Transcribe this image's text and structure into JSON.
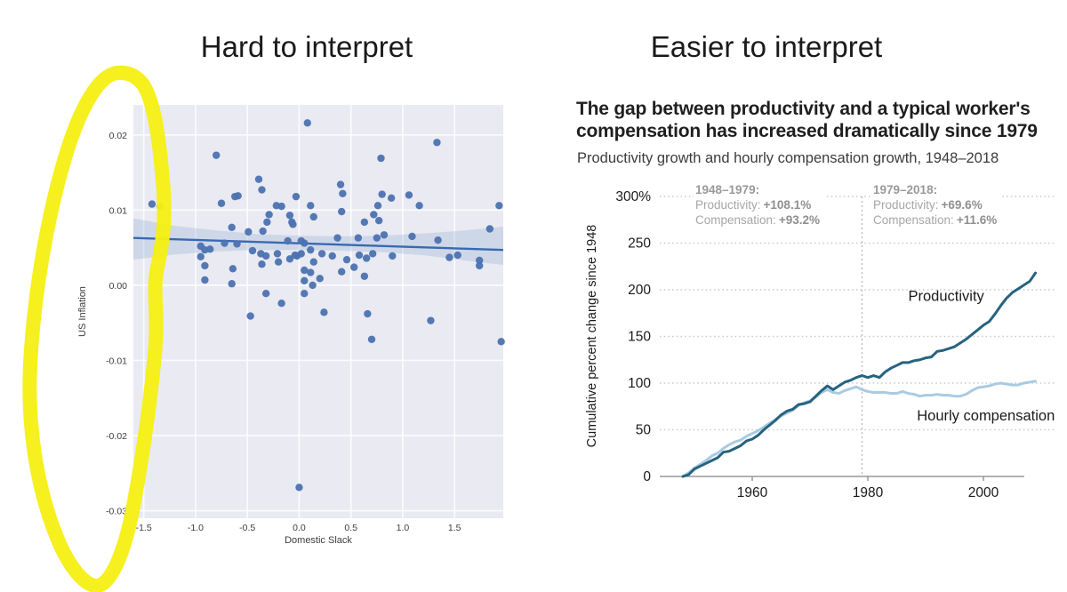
{
  "slide": {
    "left_title": "Hard to interpret",
    "right_title": "Easier to interpret"
  },
  "annotation": {
    "name": "hand-drawn yellow highlighter circle over left chart y-axis region",
    "color": "#f5ef15"
  },
  "chart_data": [
    {
      "type": "scatter",
      "xlabel": "Domestic Slack",
      "ylabel": "US Inflation",
      "xlim": [
        -1.6,
        1.97
      ],
      "ylim": [
        -0.031,
        0.024
      ],
      "grid": true,
      "xticks": [
        {
          "v": -1.5,
          "label": "-1.5"
        },
        {
          "v": -1.0,
          "label": "-1.0"
        },
        {
          "v": -0.5,
          "label": "-0.5"
        },
        {
          "v": 0.0,
          "label": "0.0"
        },
        {
          "v": 0.5,
          "label": "0.5"
        },
        {
          "v": 1.0,
          "label": "1.0"
        },
        {
          "v": 1.5,
          "label": "1.5"
        }
      ],
      "yticks": [
        {
          "v": 0.02,
          "label": "0.02"
        },
        {
          "v": 0.01,
          "label": "0.01"
        },
        {
          "v": 0.0,
          "label": "0.00"
        },
        {
          "v": -0.01,
          "label": "-0.01"
        },
        {
          "v": -0.02,
          "label": "-0.02"
        },
        {
          "v": -0.03,
          "label": "-0.03"
        }
      ],
      "points": [
        [
          0.08,
          0.0216
        ],
        [
          1.33,
          0.019
        ],
        [
          -0.8,
          0.0173
        ],
        [
          0.79,
          0.0169
        ],
        [
          -0.39,
          0.0141
        ],
        [
          0.4,
          0.0134
        ],
        [
          0.42,
          0.0122
        ],
        [
          -0.36,
          0.0127
        ],
        [
          -0.62,
          0.0118
        ],
        [
          -0.59,
          0.0119
        ],
        [
          -0.03,
          0.0118
        ],
        [
          0.8,
          0.0121
        ],
        [
          0.89,
          0.0116
        ],
        [
          1.06,
          0.012
        ],
        [
          -1.42,
          0.0108
        ],
        [
          -1.34,
          0.0105
        ],
        [
          -0.75,
          0.0109
        ],
        [
          -0.22,
          0.0106
        ],
        [
          -0.17,
          0.0105
        ],
        [
          0.11,
          0.0106
        ],
        [
          0.76,
          0.0106
        ],
        [
          1.16,
          0.0106
        ],
        [
          1.93,
          0.0106
        ],
        [
          -0.29,
          0.0094
        ],
        [
          -0.09,
          0.0093
        ],
        [
          0.14,
          0.0091
        ],
        [
          0.41,
          0.0098
        ],
        [
          0.72,
          0.0094
        ],
        [
          0.77,
          0.0086
        ],
        [
          0.63,
          0.0084
        ],
        [
          -0.31,
          0.0084
        ],
        [
          -0.07,
          0.0084
        ],
        [
          -0.06,
          0.0081
        ],
        [
          -0.65,
          0.0077
        ],
        [
          -0.35,
          0.0072
        ],
        [
          1.84,
          0.0075
        ],
        [
          -0.49,
          0.0071
        ],
        [
          0.75,
          0.0063
        ],
        [
          0.82,
          0.0067
        ],
        [
          1.09,
          0.0065
        ],
        [
          -0.11,
          0.0059
        ],
        [
          0.02,
          0.0059
        ],
        [
          0.05,
          0.0056
        ],
        [
          0.37,
          0.0063
        ],
        [
          0.57,
          0.0063
        ],
        [
          1.34,
          0.006
        ],
        [
          -0.72,
          0.0056
        ],
        [
          -0.6,
          0.0055
        ],
        [
          -0.95,
          0.0052
        ],
        [
          -0.91,
          0.0047
        ],
        [
          -0.86,
          0.0048
        ],
        [
          -0.45,
          0.0046
        ],
        [
          -0.37,
          0.0042
        ],
        [
          -0.32,
          0.0039
        ],
        [
          -0.21,
          0.0042
        ],
        [
          -0.04,
          0.004
        ],
        [
          -0.02,
          0.0039
        ],
        [
          0.02,
          0.0042
        ],
        [
          0.11,
          0.0047
        ],
        [
          0.22,
          0.0042
        ],
        [
          0.32,
          0.0039
        ],
        [
          0.58,
          0.004
        ],
        [
          0.65,
          0.0036
        ],
        [
          0.71,
          0.0042
        ],
        [
          0.9,
          0.0039
        ],
        [
          1.45,
          0.0037
        ],
        [
          1.53,
          0.004
        ],
        [
          1.74,
          0.0033
        ],
        [
          1.74,
          0.0026
        ],
        [
          -0.95,
          0.0038
        ],
        [
          -0.91,
          0.0026
        ],
        [
          -0.64,
          0.0022
        ],
        [
          -0.36,
          0.0028
        ],
        [
          -0.2,
          0.0031
        ],
        [
          -0.09,
          0.0035
        ],
        [
          0.14,
          0.0031
        ],
        [
          0.46,
          0.0034
        ],
        [
          0.53,
          0.0024
        ],
        [
          0.05,
          0.002
        ],
        [
          0.11,
          0.0017
        ],
        [
          0.41,
          0.0018
        ],
        [
          0.63,
          0.0012
        ],
        [
          -0.91,
          0.0007
        ],
        [
          -0.65,
          0.0002
        ],
        [
          0.05,
          0.0006
        ],
        [
          0.13,
          0.0
        ],
        [
          0.2,
          0.0009
        ],
        [
          0.05,
          -0.0011
        ],
        [
          -0.32,
          -0.0011
        ],
        [
          -0.17,
          -0.0024
        ],
        [
          0.24,
          -0.0036
        ],
        [
          -0.47,
          -0.0041
        ],
        [
          0.66,
          -0.0038
        ],
        [
          1.27,
          -0.0047
        ],
        [
          0.7,
          -0.0072
        ],
        [
          1.95,
          -0.0075
        ],
        [
          0.0,
          -0.0269
        ]
      ],
      "regression": [
        [
          -1.6,
          0.0063
        ],
        [
          1.97,
          0.0047
        ]
      ],
      "ci_band": {
        "upper": [
          [
            -1.6,
            0.0089
          ],
          [
            -1.2,
            0.0079
          ],
          [
            -0.8,
            0.0073
          ],
          [
            -0.4,
            0.0068
          ],
          [
            0.0,
            0.0066
          ],
          [
            0.4,
            0.0065
          ],
          [
            0.8,
            0.0066
          ],
          [
            1.2,
            0.0069
          ],
          [
            1.6,
            0.0073
          ],
          [
            1.97,
            0.0078
          ]
        ],
        "lower": [
          [
            -1.6,
            0.0034
          ],
          [
            -1.2,
            0.0041
          ],
          [
            -0.8,
            0.0045
          ],
          [
            -0.4,
            0.0047
          ],
          [
            0.0,
            0.0047
          ],
          [
            0.4,
            0.0046
          ],
          [
            0.8,
            0.0044
          ],
          [
            1.2,
            0.004
          ],
          [
            1.6,
            0.0033
          ],
          [
            1.97,
            0.0027
          ]
        ]
      },
      "colors": {
        "plot_bg": "#e9eaf2",
        "grid": "#ffffff",
        "point": "#4c72b0",
        "line": "#3a68b2",
        "band": "#9fb4d8"
      }
    },
    {
      "type": "line",
      "headline": {
        "line1": "The gap between productivity and a typical worker's",
        "line2": "compensation has increased dramatically since 1979"
      },
      "subtitle": "Productivity growth and hourly compensation growth, 1948–2018",
      "ylabel": "Cumulative percent change since 1948",
      "xlim": [
        1944,
        2009
      ],
      "ylim": [
        0,
        300
      ],
      "grid": "dotted horizontal",
      "xticks": [
        {
          "v": 1960,
          "label": "1960"
        },
        {
          "v": 1980,
          "label": "1980"
        },
        {
          "v": 2000,
          "label": "2000"
        }
      ],
      "yticks": [
        {
          "v": 0,
          "label": "0"
        },
        {
          "v": 50,
          "label": "50"
        },
        {
          "v": 100,
          "label": "100"
        },
        {
          "v": 150,
          "label": "150"
        },
        {
          "v": 200,
          "label": "200"
        },
        {
          "v": 250,
          "label": "250"
        },
        {
          "v": 300,
          "label": "300%"
        }
      ],
      "vline_year": 1979,
      "periods": [
        {
          "range": "1948–1979:",
          "productivity_label": "Productivity:",
          "productivity_value": "+108.1%",
          "compensation_label": "Compensation:",
          "compensation_value": "+93.2%"
        },
        {
          "range": "1979–2018:",
          "productivity_label": "Productivity:",
          "productivity_value": "+69.6%",
          "compensation_label": "Compensation:",
          "compensation_value": "+11.6%"
        }
      ],
      "series": [
        {
          "name": "Hourly compensation",
          "color": "#a9cbe2",
          "label_anchor": {
            "year": 1988.5,
            "value": 60
          },
          "year_start": 1948,
          "values": [
            0,
            4,
            9,
            13,
            17,
            22,
            25,
            30,
            34,
            37,
            39,
            43,
            46,
            49,
            53,
            57,
            61,
            65,
            68,
            71,
            76,
            79,
            81,
            85,
            90,
            93,
            90,
            89,
            92,
            94,
            96,
            93,
            91,
            90,
            90,
            90,
            89,
            89,
            91,
            89,
            88,
            86,
            87,
            87,
            88,
            87,
            87,
            86,
            86,
            88,
            92,
            95,
            96,
            97,
            99,
            100,
            99,
            98,
            98,
            100,
            101,
            102
          ]
        },
        {
          "name": "Productivity",
          "color": "#26637f",
          "label_anchor": {
            "year": 1987,
            "value": 188
          },
          "year_start": 1948,
          "values": [
            0,
            2,
            8,
            11,
            14,
            17,
            20,
            26,
            27,
            30,
            33,
            38,
            40,
            44,
            50,
            55,
            60,
            66,
            70,
            72,
            77,
            78,
            80,
            86,
            92,
            97,
            93,
            97,
            101,
            103,
            106,
            108,
            106,
            108,
            106,
            112,
            116,
            119,
            122,
            122,
            124,
            125,
            127,
            128,
            134,
            135,
            137,
            139,
            143,
            147,
            152,
            157,
            162,
            166,
            174,
            183,
            191,
            197,
            201,
            205,
            209,
            218
          ]
        }
      ],
      "colors": {
        "axis": "#999999",
        "gridline": "#c9c9c9",
        "vline": "#b8b8b8",
        "tick_text": "#1a1a1a"
      }
    }
  ]
}
